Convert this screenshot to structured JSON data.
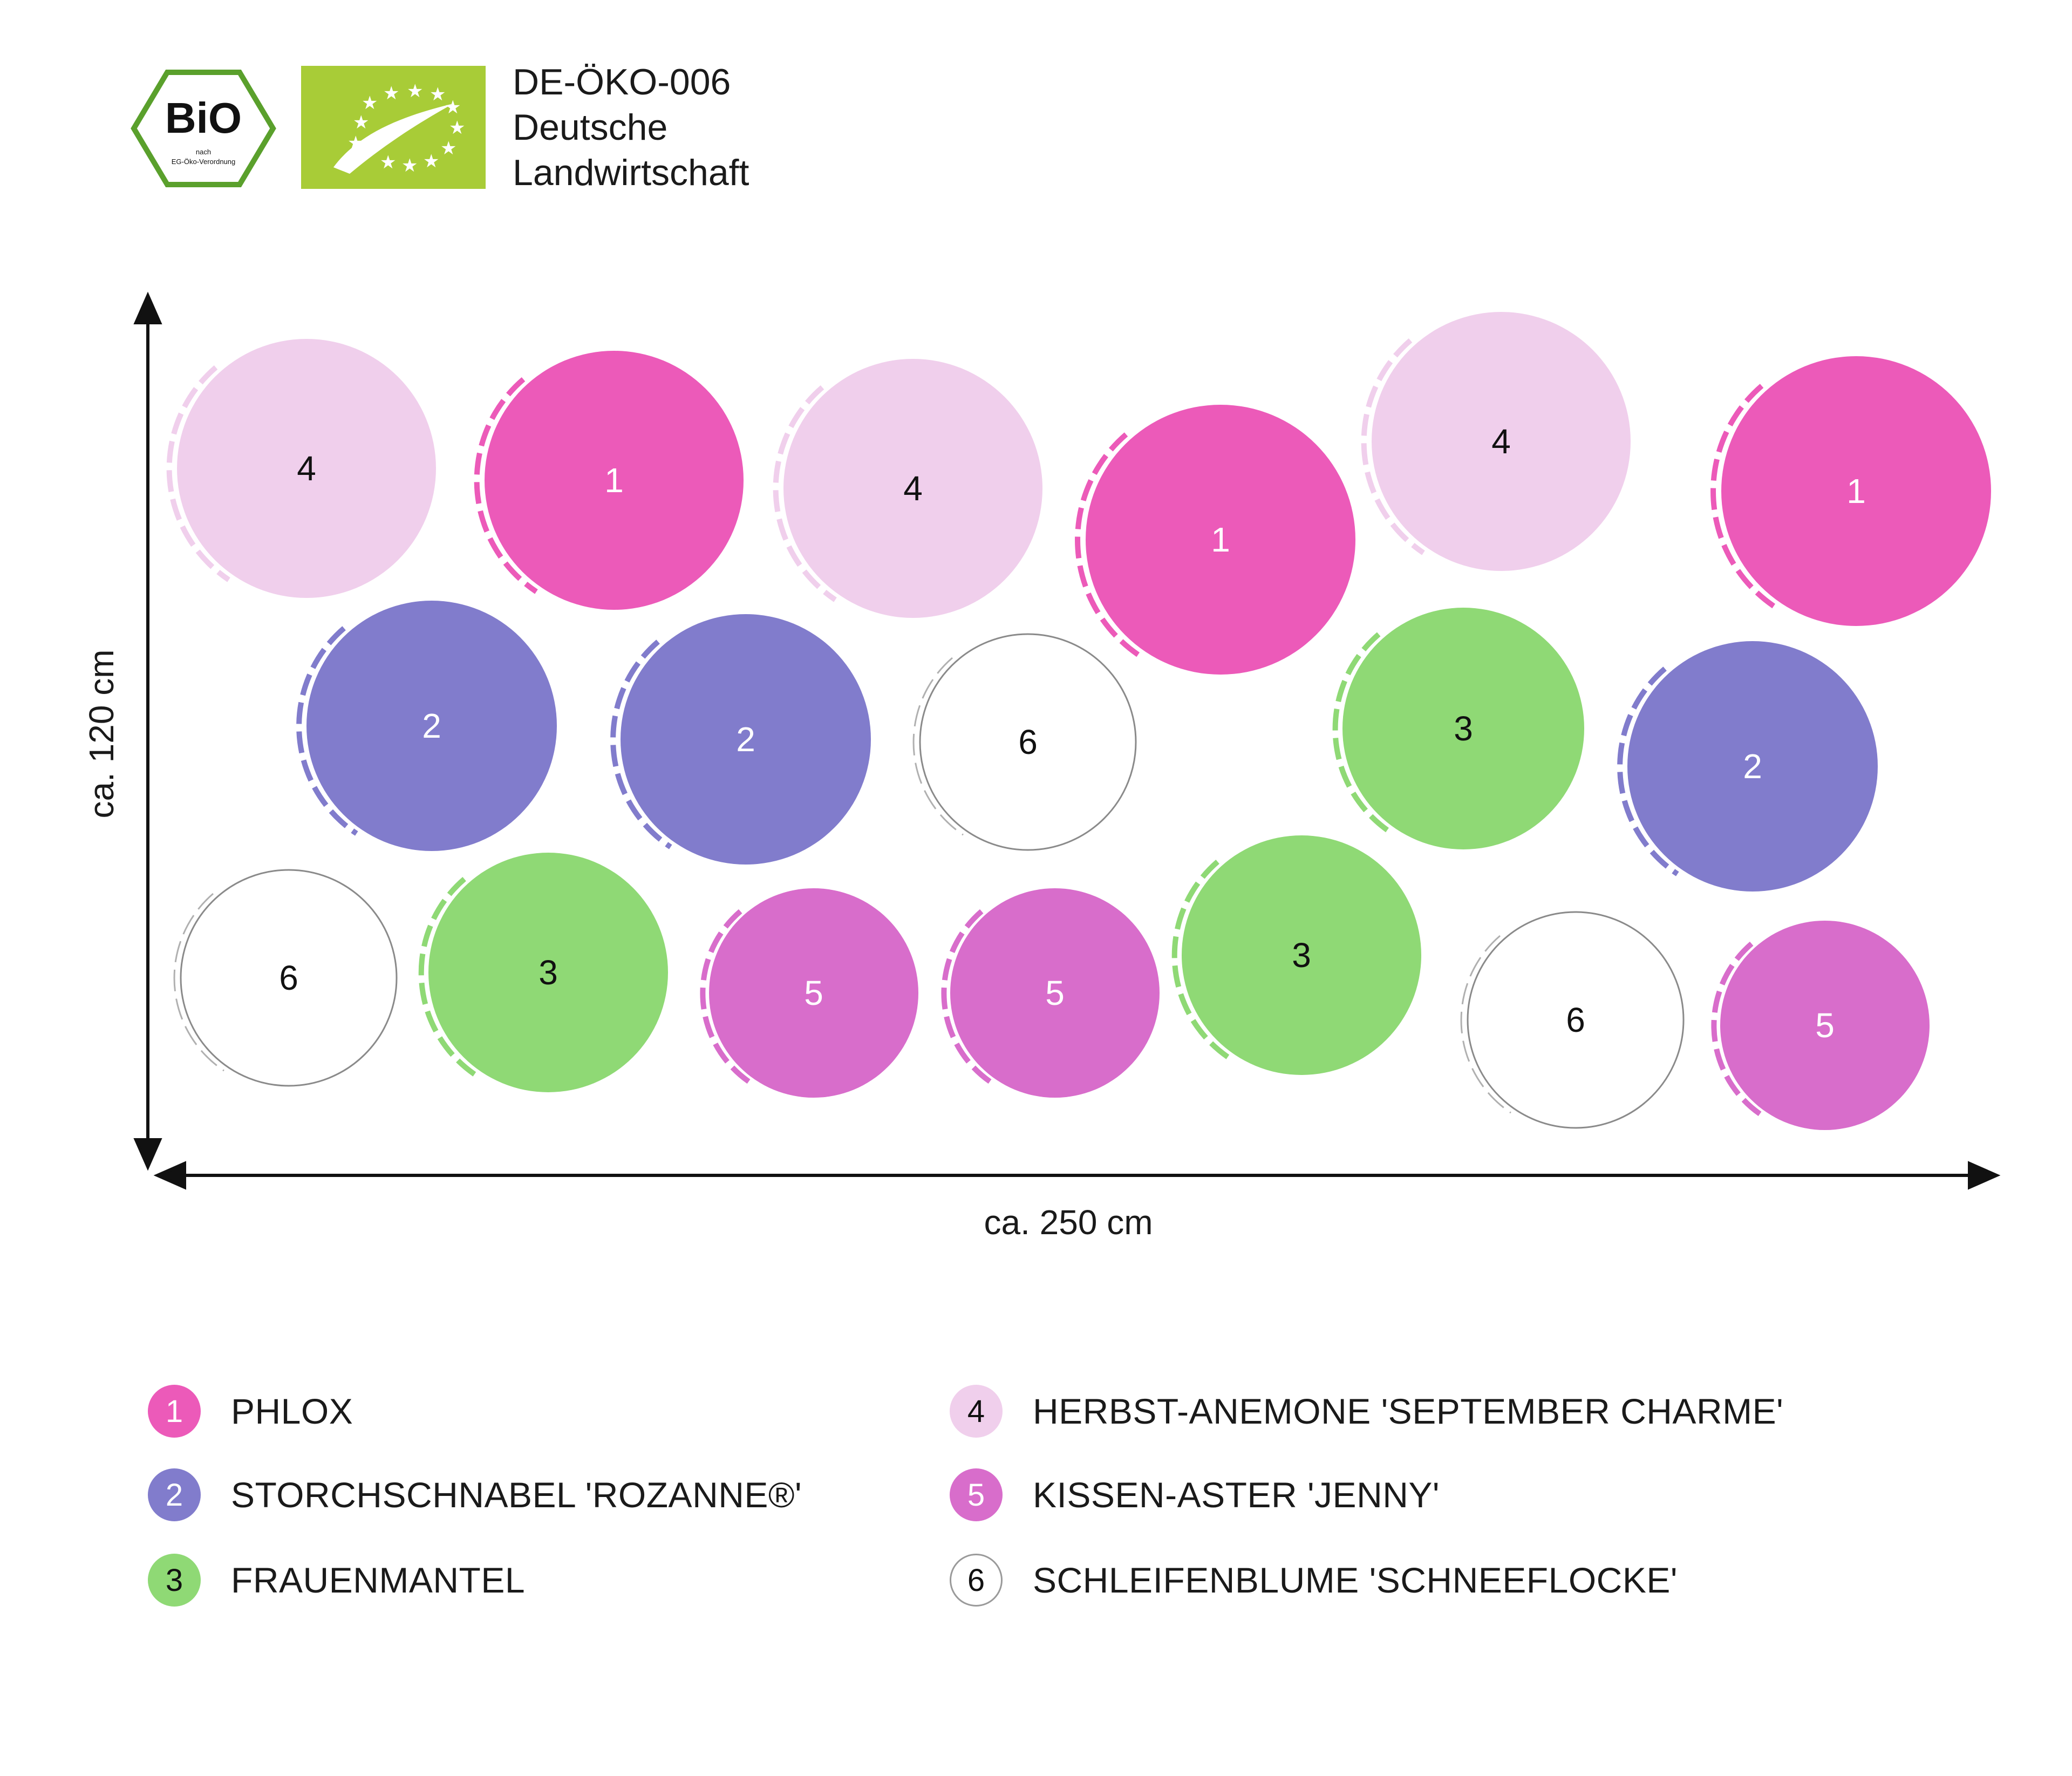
{
  "header": {
    "bio_badge": {
      "label": "BiO",
      "sub": [
        "nach",
        "EG-Öko-Verordnung"
      ]
    },
    "eu_logo": {
      "icon": "eu-organic-leaf-icon",
      "color": "#a8cc37"
    },
    "certification": [
      "DE-ÖKO-006",
      "Deutsche",
      "Landwirtschaft"
    ]
  },
  "plan": {
    "width_label": "ca. 250 cm",
    "height_label": "ca. 120 cm",
    "plants": [
      {
        "id": "4"
      },
      {
        "id": "1"
      },
      {
        "id": "4"
      },
      {
        "id": "1"
      },
      {
        "id": "4"
      },
      {
        "id": "1"
      },
      {
        "id": "2"
      },
      {
        "id": "2"
      },
      {
        "id": "6"
      },
      {
        "id": "3"
      },
      {
        "id": "2"
      },
      {
        "id": "6"
      },
      {
        "id": "3"
      },
      {
        "id": "5"
      },
      {
        "id": "5"
      },
      {
        "id": "3"
      },
      {
        "id": "6"
      },
      {
        "id": "5"
      }
    ]
  },
  "legend": [
    {
      "id": "1",
      "label": "PHLOX",
      "color": "#ec5ab9",
      "text_color": "#ffffff"
    },
    {
      "id": "2",
      "label": "STORCHSCHNABEL 'ROZANNE®'",
      "color": "#817ccc",
      "text_color": "#ffffff"
    },
    {
      "id": "3",
      "label": "FRAUENMANTEL",
      "color": "#8fd975",
      "text_color": "#111111"
    },
    {
      "id": "4",
      "label": "HERBST-ANEMONE 'SEPTEMBER CHARME'",
      "color": "#f0cfec",
      "text_color": "#111111"
    },
    {
      "id": "5",
      "label": "KISSEN-ASTER 'JENNY'",
      "color": "#d86dcb",
      "text_color": "#ffffff"
    },
    {
      "id": "6",
      "label": "SCHLEIFENBLUME 'SCHNEEFLOCKE'",
      "color": "#ffffff",
      "text_color": "#111111"
    }
  ]
}
